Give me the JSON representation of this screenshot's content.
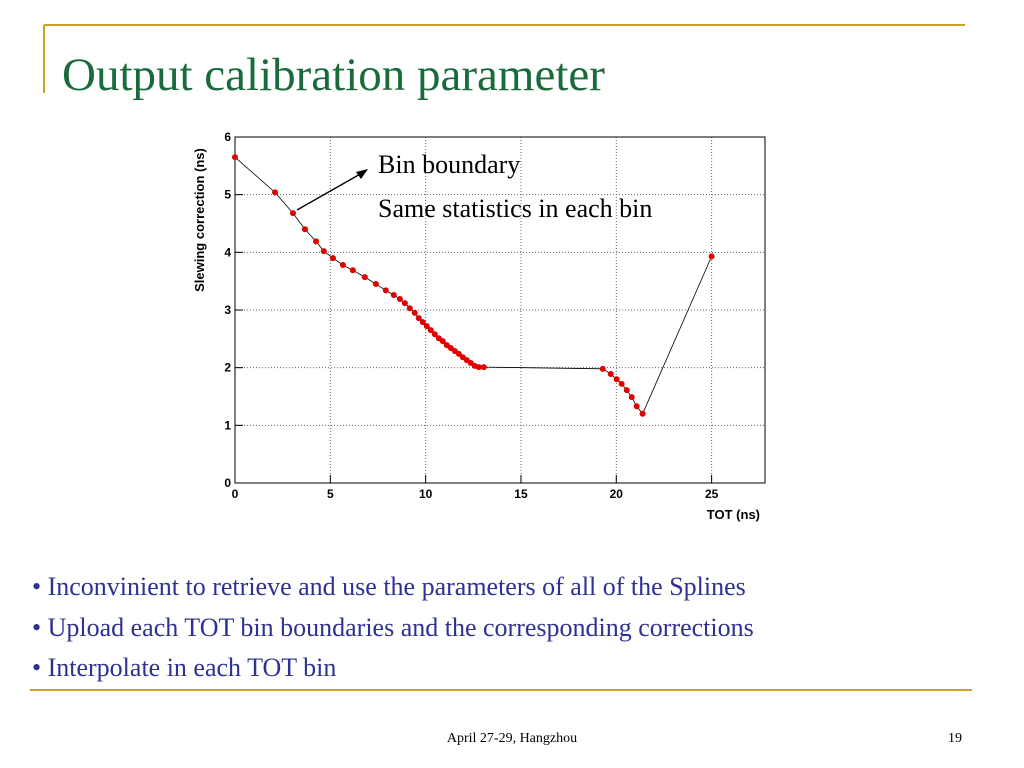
{
  "title": "Output calibration parameter",
  "chart_data": {
    "type": "scatter",
    "x_label": "TOT (ns)",
    "y_label": "Slewing correction (ns)",
    "annotations": [
      "Bin boundary",
      "Same statistics in each bin"
    ],
    "x": [
      0,
      2.1,
      3.04,
      3.67,
      4.25,
      4.66,
      5.14,
      5.66,
      6.18,
      6.81,
      7.39,
      7.91,
      8.33,
      8.65,
      8.91,
      9.17,
      9.43,
      9.64,
      9.85,
      10.06,
      10.27,
      10.48,
      10.69,
      10.9,
      11.11,
      11.32,
      11.53,
      11.74,
      11.95,
      12.16,
      12.37,
      12.58,
      12.79,
      13.05,
      19.29,
      19.71,
      20.02,
      20.28,
      20.55,
      20.81,
      21.07,
      21.38,
      25.0
    ],
    "values": [
      5.65,
      5.04,
      4.68,
      4.4,
      4.19,
      4.02,
      3.9,
      3.78,
      3.69,
      3.57,
      3.45,
      3.34,
      3.26,
      3.19,
      3.12,
      3.03,
      2.95,
      2.86,
      2.79,
      2.72,
      2.65,
      2.58,
      2.51,
      2.46,
      2.39,
      2.34,
      2.29,
      2.24,
      2.18,
      2.13,
      2.08,
      2.03,
      2.01,
      2.01,
      1.98,
      1.89,
      1.8,
      1.72,
      1.61,
      1.49,
      1.33,
      1.2,
      3.93
    ],
    "color": "#e00000",
    "line_color": "#000000",
    "xlim": [
      0,
      27.8
    ],
    "xticks": [
      0,
      5,
      10,
      15,
      20,
      25
    ],
    "ylim": [
      0,
      6
    ],
    "yticks": [
      0,
      1,
      2,
      3,
      4,
      5,
      6
    ],
    "grid": true
  },
  "bullets": [
    "• Inconvinient to retrieve and use the parameters of all of the Splines",
    "• Upload each TOT bin boundaries and the corresponding corrections",
    "• Interpolate in each TOT bin"
  ],
  "footer": {
    "text": "April 27-29, Hangzhou",
    "page": "19"
  }
}
